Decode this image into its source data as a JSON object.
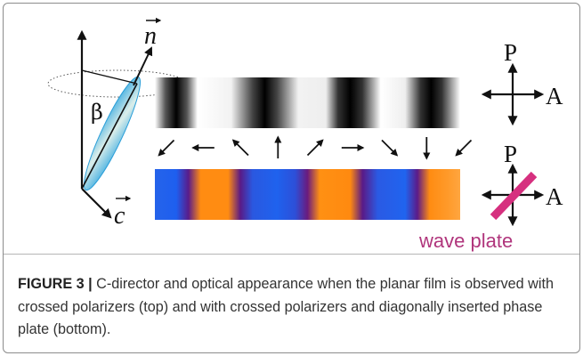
{
  "figure": {
    "symbols": {
      "n": "n",
      "c": "c",
      "beta": "β",
      "P_top": "P",
      "A_top": "A",
      "P_bottom": "P",
      "A_bottom": "A"
    },
    "wave_plate_label": "wave plate",
    "colors": {
      "wave_plate": "#d6307f",
      "ellipsoid": "#3aa7dd",
      "bottom_strip": [
        "#1f5fe8",
        "#4a1ba8",
        "#ff8a10",
        "#5a1a8c"
      ]
    },
    "director_arrows_deg": [
      225,
      180,
      135,
      90,
      45,
      0,
      -45,
      -90,
      -135
    ]
  },
  "caption": {
    "label": "FIGURE 3 |",
    "text": " C-director and optical appearance when the planar film is observed with crossed polarizers (top) and with crossed polarizers and diagonally inserted phase plate (bottom)."
  }
}
